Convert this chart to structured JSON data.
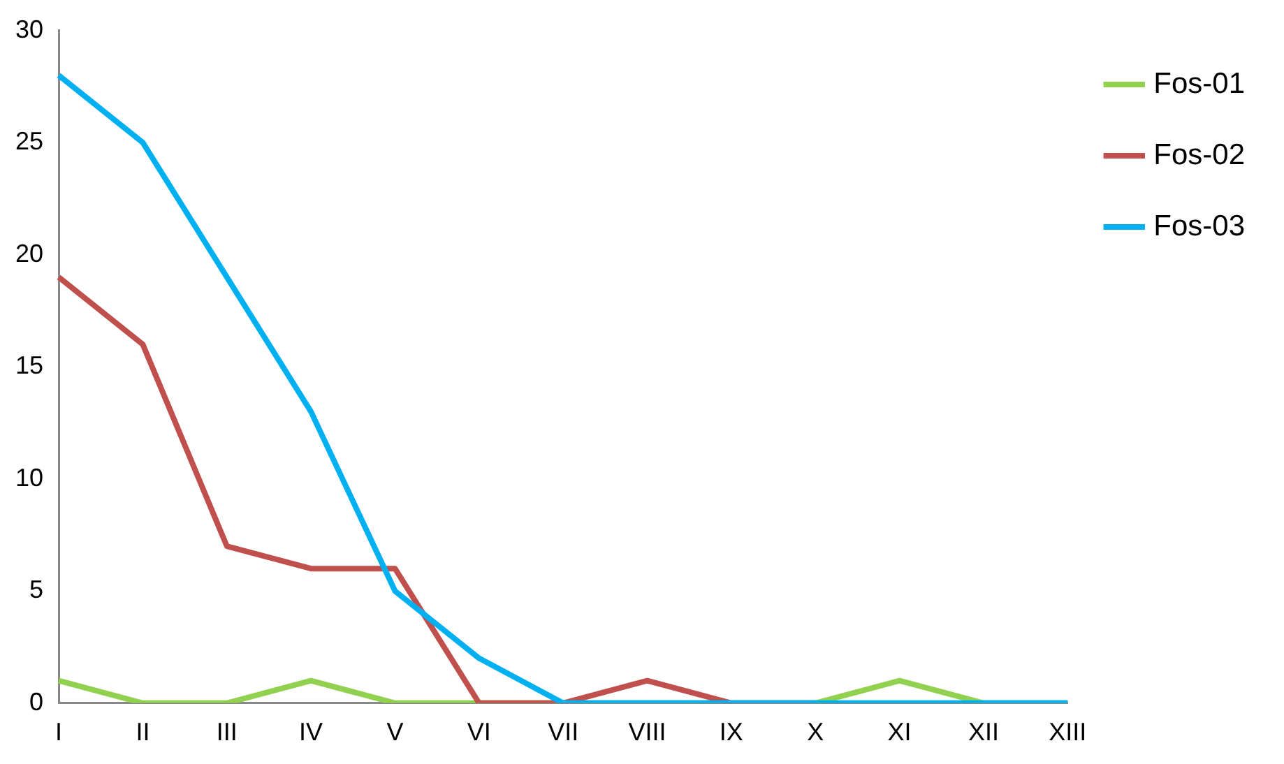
{
  "chart_data": {
    "type": "line",
    "categories": [
      "I",
      "II",
      "III",
      "IV",
      "V",
      "VI",
      "VII",
      "VIII",
      "IX",
      "X",
      "XI",
      "XII",
      "XIII"
    ],
    "series": [
      {
        "name": "Fos-01",
        "color": "#92d050",
        "values": [
          1,
          0,
          0,
          1,
          0,
          0,
          0,
          0,
          0,
          0,
          1,
          0,
          0
        ]
      },
      {
        "name": "Fos-02",
        "color": "#c0504d",
        "values": [
          19,
          16,
          7,
          6,
          6,
          0,
          0,
          1,
          0,
          0,
          null,
          null,
          null
        ]
      },
      {
        "name": "Fos-03",
        "color": "#00b0f0",
        "values": [
          28,
          25,
          19,
          13,
          5,
          2,
          0,
          0,
          0,
          0,
          0,
          0,
          0
        ]
      }
    ],
    "ylim": [
      0,
      30
    ],
    "yticks": [
      0,
      5,
      10,
      15,
      20,
      25,
      30
    ],
    "grid": false,
    "legend": "top right",
    "marker": "none",
    "line_style": "solid"
  }
}
